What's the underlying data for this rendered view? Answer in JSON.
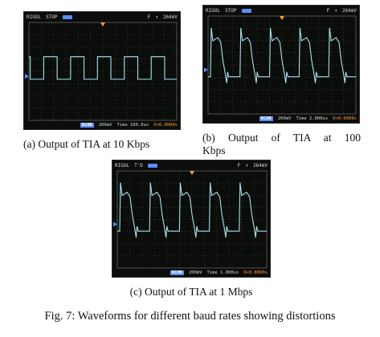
{
  "figure_caption": "Fig. 7: Waveforms for different baud rates showing distortions",
  "panels": [
    {
      "caption": "(a) Output of TIA at 10 Kbps",
      "status": {
        "brand": "RIGOL",
        "mode": "STOP",
        "trig_marker": "T",
        "coupling": "F",
        "trig_level": "264mV"
      },
      "readout": {
        "channel": "DCHB",
        "volts_div": "200mV",
        "time": "Time 100.0us",
        "offset": "O+0.0000s"
      },
      "waveform": "square-10kbps"
    },
    {
      "caption_line1": "(b)  Output  of  TIA  at  100",
      "caption_line2": "Kbps",
      "status": {
        "brand": "RIGOL",
        "mode": "STOP",
        "trig_marker": "T",
        "coupling": "F",
        "trig_level": "264mV"
      },
      "readout": {
        "channel": "DCHB",
        "volts_div": "200mV",
        "time": "Time 2.000us",
        "offset": "O+0.0000s"
      },
      "waveform": "distorted-100kbps"
    },
    {
      "caption": "(c) Output of TIA at 1 Mbps",
      "status": {
        "brand": "RIGOL",
        "mode": "T'D",
        "trig_marker": "T",
        "coupling": "F",
        "trig_level": "264mV"
      },
      "readout": {
        "channel": "DCHB",
        "volts_div": "200mV",
        "time": "Time 1.000us",
        "offset": "O+0.0000s"
      },
      "waveform": "distorted-1mbps"
    }
  ],
  "colors": {
    "trace": "#a7e2ee",
    "grid": "#5a5a5a",
    "screen": "#0b0d0b",
    "trig_marker": "#ff9a3a",
    "ch_marker": "#5a8cff"
  }
}
